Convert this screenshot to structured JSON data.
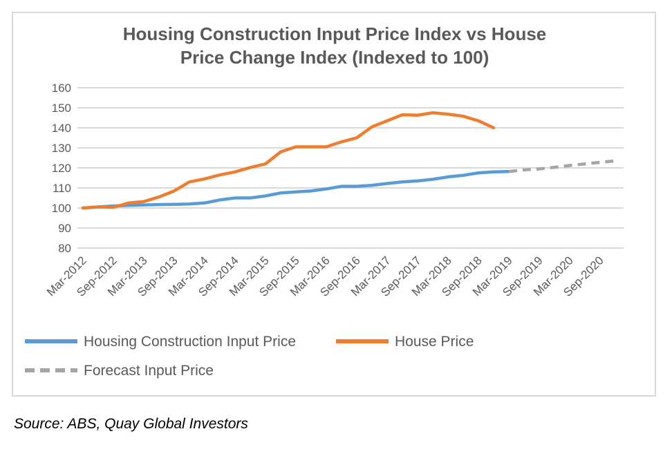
{
  "chart_data": {
    "type": "line",
    "title": [
      "Housing Construction Input Price Index vs House",
      "Price Change Index (Indexed to 100)"
    ],
    "categories": [
      "Mar-2012",
      null,
      "Sep-2012",
      null,
      "Mar-2013",
      null,
      "Sep-2013",
      null,
      "Mar-2014",
      null,
      "Sep-2014",
      null,
      "Mar-2015",
      null,
      "Sep-2015",
      null,
      "Mar-2016",
      null,
      "Sep-2016",
      null,
      "Mar-2017",
      null,
      "Sep-2017",
      null,
      "Mar-2018",
      null,
      "Sep-2018",
      null,
      "Mar-2019",
      null,
      "Sep-2019",
      null,
      "Mar-2020",
      null,
      "Sep-2020",
      null
    ],
    "series": [
      {
        "name": "Housing Construction Input Price",
        "color": "#5b9bd5",
        "values": [
          100,
          100.5,
          101,
          101.3,
          101.5,
          101.7,
          101.8,
          102,
          102.5,
          104,
          105,
          105,
          106,
          107.5,
          108,
          108.5,
          109.5,
          110.8,
          110.8,
          111.3,
          112.2,
          113,
          113.5,
          114.3,
          115.5,
          116.3,
          117.5,
          118,
          118.2,
          null,
          null,
          null,
          null,
          null,
          null,
          null
        ]
      },
      {
        "name": "House Price",
        "color": "#ed7d31",
        "values": [
          100,
          100.5,
          100.3,
          102.5,
          103.2,
          105.5,
          108.5,
          113,
          114.5,
          116.5,
          118,
          120.2,
          122,
          128,
          130.5,
          130.5,
          130.5,
          133,
          135,
          140.5,
          143.5,
          146.5,
          146.3,
          147.5,
          146.8,
          145.8,
          143.5,
          140,
          null,
          null,
          null,
          null,
          null,
          null,
          null,
          null
        ]
      },
      {
        "name": "Forecast Input Price",
        "color": "#a5a5a5",
        "dashed": true,
        "values": [
          null,
          null,
          null,
          null,
          null,
          null,
          null,
          null,
          null,
          null,
          null,
          null,
          null,
          null,
          null,
          null,
          null,
          null,
          null,
          null,
          null,
          null,
          null,
          null,
          null,
          null,
          null,
          null,
          118.2,
          119,
          119.5,
          120.3,
          121.2,
          122,
          122.8,
          123.5
        ]
      }
    ],
    "ylim": [
      80,
      160
    ],
    "yticks": [
      80,
      90,
      100,
      110,
      120,
      130,
      140,
      150,
      160
    ],
    "grid": true
  },
  "source": "Source: ABS, Quay Global Investors"
}
